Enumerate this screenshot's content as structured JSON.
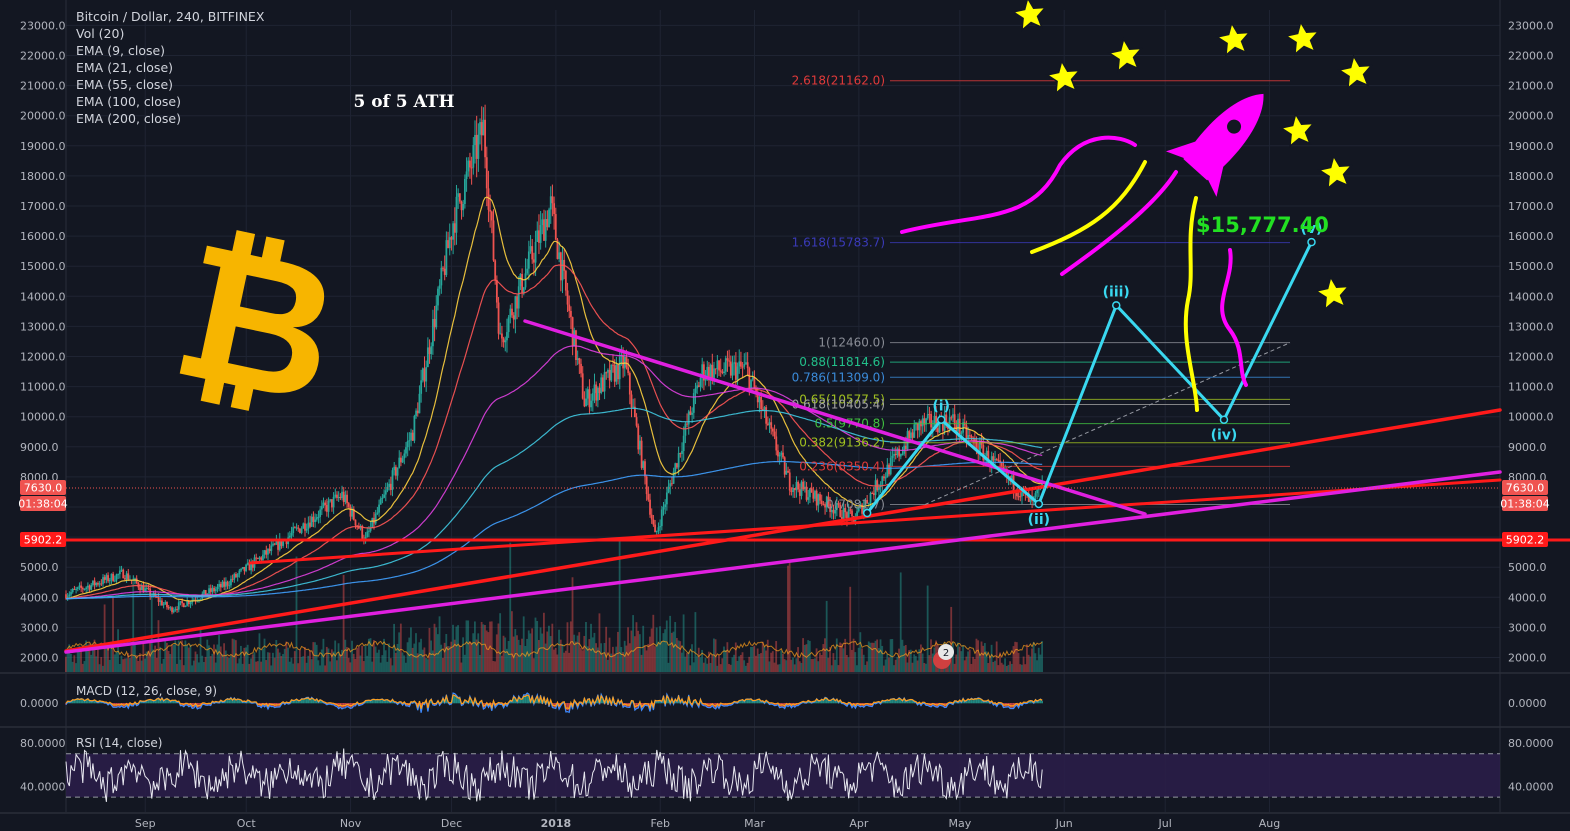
{
  "chart_title": "Bitcoin / Dollar, 240, BITFINEX",
  "indicators": [
    "Vol (20)",
    "EMA (9, close)",
    "EMA (21, close)",
    "EMA (55, close)",
    "EMA (100, close)",
    "EMA (200, close)"
  ],
  "annotation_ath": "5 of 5 ATH",
  "price_target_label": "$15,777.40",
  "price_badges": {
    "current": "7630.0",
    "countdown": "01:38:04",
    "support": "5902.2"
  },
  "wave_labels": [
    "(i)",
    "(ii)",
    "(iii)",
    "(iv)",
    "(v)"
  ],
  "alert_count": "2",
  "macd_label": "MACD (12, 26, close, 9)",
  "rsi_label": "RSI (14, close)",
  "colors": {
    "background": "#131722",
    "bitcoin_logo": "#f7b500",
    "trend_red": "#ff1a1a",
    "trend_magenta": "#e020e0",
    "wave_cyan": "#3ad8f0",
    "target_green": "#22e022",
    "rocket": "#ff00ff",
    "stars": "#ffff00",
    "rsi_band": "#2b1d4a"
  },
  "chart_data": [
    {
      "type": "candlestick",
      "title": "Bitcoin / Dollar, 240, BITFINEX",
      "x_range": [
        "2017-08-15",
        "2018-10-15"
      ],
      "x_tick_labels": [
        "Sep",
        "Oct",
        "Nov",
        "Dec",
        "2018",
        "Feb",
        "Mar",
        "Apr",
        "May",
        "Jun",
        "Jul",
        "Aug"
      ],
      "y_tick_labels": [
        "2000.0",
        "3000.0",
        "4000.0",
        "5000.0",
        "6000.0",
        "7000.0",
        "8000.0",
        "9000.0",
        "10000.0",
        "11000.0",
        "12000.0",
        "13000.0",
        "14000.0",
        "15000.0",
        "16000.0",
        "17000.0",
        "18000.0",
        "19000.0",
        "20000.0",
        "21000.0",
        "22000.0",
        "23000.0"
      ],
      "ylim": [
        1700,
        23500
      ],
      "price_path": [
        {
          "x": "2017-08-15",
          "y": 4100
        },
        {
          "x": "2017-09-01",
          "y": 4800
        },
        {
          "x": "2017-09-15",
          "y": 3600
        },
        {
          "x": "2017-10-01",
          "y": 4400
        },
        {
          "x": "2017-10-20",
          "y": 6000
        },
        {
          "x": "2017-11-05",
          "y": 7400
        },
        {
          "x": "2017-11-12",
          "y": 5900
        },
        {
          "x": "2017-11-26",
          "y": 9500
        },
        {
          "x": "2017-12-08",
          "y": 16500
        },
        {
          "x": "2017-12-17",
          "y": 19600
        },
        {
          "x": "2017-12-22",
          "y": 12500
        },
        {
          "x": "2018-01-06",
          "y": 17000
        },
        {
          "x": "2018-01-16",
          "y": 10500
        },
        {
          "x": "2018-01-28",
          "y": 11800
        },
        {
          "x": "2018-02-06",
          "y": 6000
        },
        {
          "x": "2018-02-20",
          "y": 11500
        },
        {
          "x": "2018-03-05",
          "y": 11600
        },
        {
          "x": "2018-03-18",
          "y": 7800
        },
        {
          "x": "2018-04-06",
          "y": 6600
        },
        {
          "x": "2018-04-25",
          "y": 9700
        },
        {
          "x": "2018-05-05",
          "y": 9900
        },
        {
          "x": "2018-05-29",
          "y": 7100
        },
        {
          "x": "2018-06-01",
          "y": 7630
        }
      ],
      "ema_series": [
        "EMA (9, close)",
        "EMA (21, close)",
        "EMA (55, close)",
        "EMA (100, close)",
        "EMA (200, close)"
      ],
      "fib_levels": [
        {
          "label": "2.618(21162.0)",
          "value": 21162.0,
          "color": "#e03a3a"
        },
        {
          "label": "1.618(15783.7)",
          "value": 15783.7,
          "color": "#3a3ab8"
        },
        {
          "label": "1(12460.0)",
          "value": 12460.0,
          "color": "#8a8d96"
        },
        {
          "label": "0.88(11814.6)",
          "value": 11814.6,
          "color": "#22c08a"
        },
        {
          "label": "0.786(11309.0)",
          "value": 11309.0,
          "color": "#3a8ad8"
        },
        {
          "label": "0.65(10577.5)",
          "value": 10577.5,
          "color": "#a0c020"
        },
        {
          "label": "0.618(10405.4)",
          "value": 10405.4,
          "color": "#a0a0a0"
        },
        {
          "label": "0.5(9770.8)",
          "value": 9770.8,
          "color": "#40c040"
        },
        {
          "label": "0.382(9136.2)",
          "value": 9136.2,
          "color": "#a0c020"
        },
        {
          "label": "0.236(8350.4)",
          "value": 8350.4,
          "color": "#e03a3a"
        },
        {
          "label": "0(7081.7)",
          "value": 7081.7,
          "color": "#8a8d96"
        }
      ],
      "elliott_wave": [
        {
          "label": "",
          "x": "2018-04-10",
          "y": 6800
        },
        {
          "label": "(i)",
          "x": "2018-05-02",
          "y": 9900
        },
        {
          "label": "(ii)",
          "x": "2018-05-31",
          "y": 7100
        },
        {
          "label": "(iii)",
          "x": "2018-06-23",
          "y": 13700
        },
        {
          "label": "(iv)",
          "x": "2018-07-25",
          "y": 9900
        },
        {
          "label": "(v)",
          "x": "2018-08-20",
          "y": 15800
        }
      ],
      "annotations": [
        "5 of 5 ATH",
        "$15,777.40"
      ],
      "current_price": 7630.0,
      "support_level": 5902.2,
      "grid": true
    },
    {
      "type": "line",
      "title": "MACD (12, 26, close, 9)",
      "y_tick_labels": [
        "0.0000"
      ]
    },
    {
      "type": "line",
      "title": "RSI (14, close)",
      "y_tick_labels": [
        "80.0000",
        "40.0000"
      ],
      "band": [
        30,
        70
      ]
    }
  ]
}
